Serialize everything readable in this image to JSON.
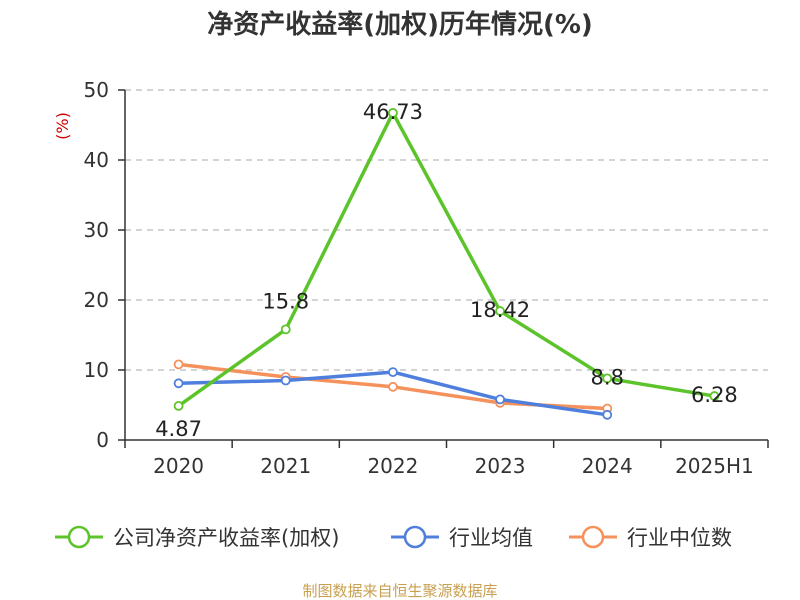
{
  "chart_data": {
    "type": "line",
    "title": "净资产收益率(加权)历年情况(%)",
    "ylabel": "(%)",
    "xlabel": "",
    "categories": [
      "2020",
      "2021",
      "2022",
      "2023",
      "2024",
      "2025H1"
    ],
    "ylim": [
      0,
      50
    ],
    "yticks": [
      0,
      10,
      20,
      30,
      40,
      50
    ],
    "grid": true,
    "legend_position": "bottom",
    "series": [
      {
        "name": "公司净资产收益率(加权)",
        "color": "#5cc42a",
        "values": [
          4.87,
          15.8,
          46.73,
          18.42,
          8.8,
          6.28
        ],
        "labels": [
          "4.87",
          "15.8",
          "46.73",
          "18.42",
          "8.8",
          "6.28"
        ]
      },
      {
        "name": "行业均值",
        "color": "#4f7fdc",
        "values": [
          8.1,
          8.5,
          9.7,
          5.8,
          3.6,
          null
        ]
      },
      {
        "name": "行业中位数",
        "color": "#f5915a",
        "values": [
          10.8,
          9.0,
          7.6,
          5.3,
          4.5,
          null
        ]
      }
    ],
    "source": "制图数据来自恒生聚源数据库",
    "colors": {
      "axis": "#333333",
      "grid": "#bbbbbb",
      "ylabel": "#cc0000",
      "source": "#c8a050"
    }
  }
}
